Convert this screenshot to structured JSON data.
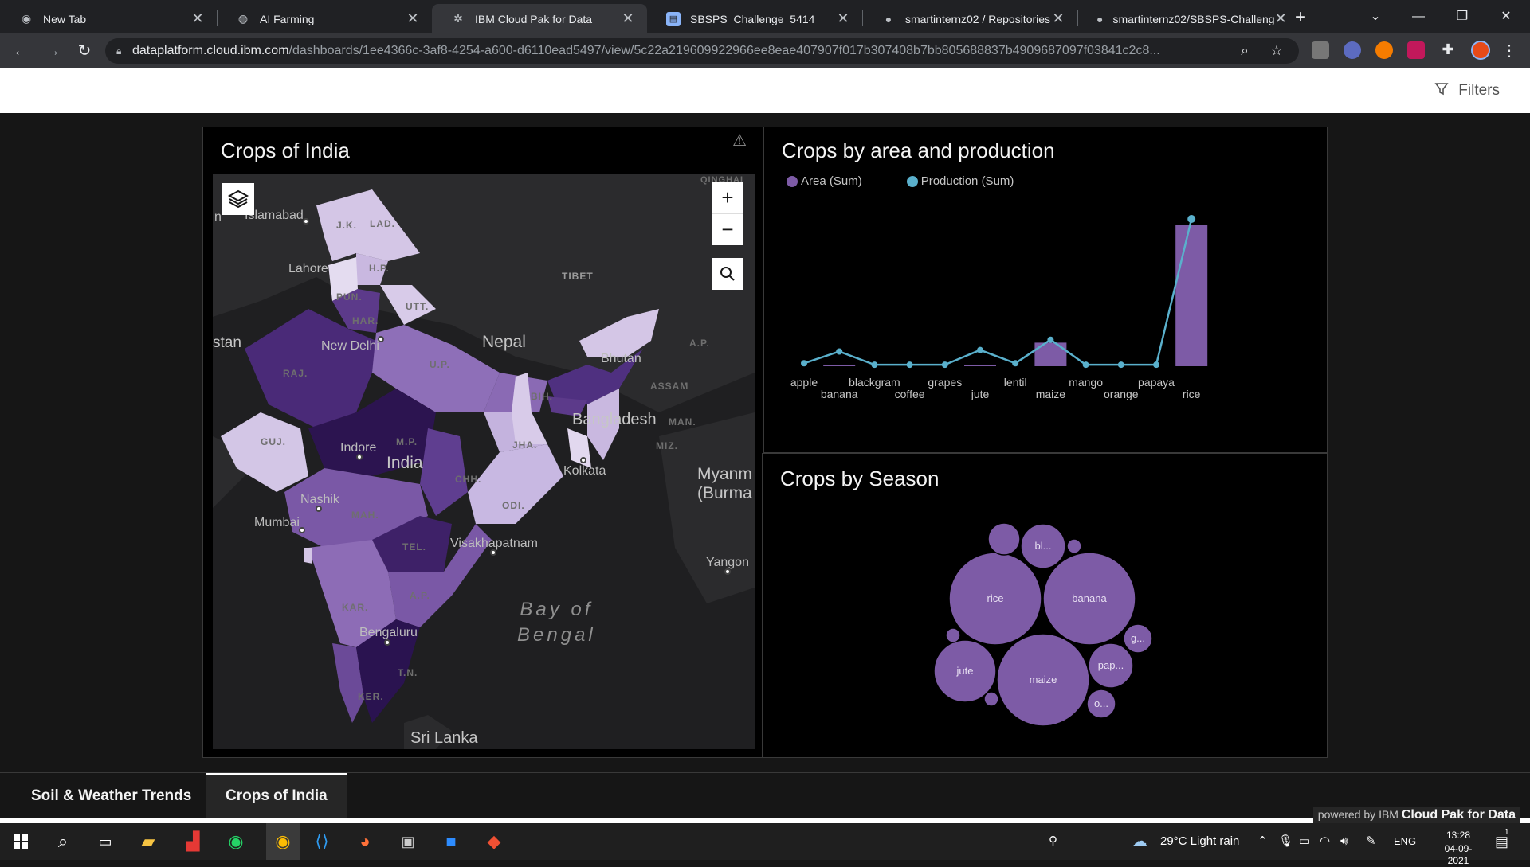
{
  "browser": {
    "tabs": [
      {
        "title": "New Tab",
        "icon": "chrome-icon"
      },
      {
        "title": "AI Farming",
        "icon": "globe-icon"
      },
      {
        "title": "IBM Cloud Pak for Data",
        "icon": "ibm-icon"
      },
      {
        "title": "SBSPS_Challenge_5414",
        "icon": "document-icon"
      },
      {
        "title": "smartinternz02 / Repositories",
        "icon": "github-icon"
      },
      {
        "title": "smartinternz02/SBSPS-Challeng",
        "icon": "github-icon"
      }
    ],
    "url_domain": "dataplatform.cloud.ibm.com",
    "url_path": "/dashboards/1ee4366c-3af8-4254-a600-d6110ead5497/view/5c22a219609922966ee8eae407907f017b307408b7bb805688837b4909687097f03841c2c8..."
  },
  "header": {
    "filters_label": "Filters"
  },
  "map_panel": {
    "title": "Crops of India",
    "labels": {
      "qinghai": "QINGHAI",
      "islamabad": "Islamabad",
      "jk": "J.K.",
      "lad": "LAD.",
      "hp": "H.P.",
      "lahore": "Lahore",
      "tibet": "TIBET",
      "pun": "PUN.",
      "utt": "UTT.",
      "har": "HAR.",
      "stan": "stan",
      "new_delhi": "New Delhi",
      "nepal": "Nepal",
      "raj": "RAJ.",
      "up": "U.P.",
      "bhutan": "Bhutan",
      "ap_ne": "A.P.",
      "assam": "ASSAM",
      "bih": "BIH.",
      "bangladesh": "Bangladesh",
      "man": "MAN.",
      "miz": "MIZ.",
      "guj": "GUJ.",
      "mp": "M.P.",
      "indore": "Indore",
      "india": "India",
      "jha": "JHA.",
      "kolkata": "Kolkata",
      "chh": "CHH.",
      "nashik": "Nashik",
      "myanmar": "Myanm\n(Burma",
      "mah": "MAH.",
      "mumbai": "Mumbai",
      "odi": "ODI.",
      "tel": "TEL.",
      "visakhapatnam": "Visakhapatnam",
      "yangon": "Yangon",
      "ap": "A.P.",
      "bay": "Bay of\nBengal",
      "kar": "KAR.",
      "bengaluru": "Bengaluru",
      "tn": "T.N.",
      "ker": "KER.",
      "srilanka": "Sri Lanka",
      "n": "n"
    }
  },
  "area_panel": {
    "title": "Crops by area and production",
    "legend": [
      {
        "name": "Area (Sum)",
        "color": "#7d5ba6"
      },
      {
        "name": "Production (Sum)",
        "color": "#5ab0cc"
      }
    ]
  },
  "season_panel": {
    "title": "Crops by Season",
    "bubbles": [
      {
        "label": "rice"
      },
      {
        "label": "banana"
      },
      {
        "label": "maize"
      },
      {
        "label": "jute"
      },
      {
        "label": "pap..."
      },
      {
        "label": "bl..."
      },
      {
        "label": "g..."
      },
      {
        "label": "o..."
      }
    ]
  },
  "chart_data": [
    {
      "type": "bar",
      "title": "Crops by area and production",
      "categories": [
        "apple",
        "banana",
        "blackgram",
        "coffee",
        "grapes",
        "jute",
        "lentil",
        "maize",
        "mango",
        "orange",
        "papaya",
        "rice"
      ],
      "series": [
        {
          "name": "Area (Sum)",
          "type": "bar",
          "values": [
            0,
            1,
            0,
            0,
            0,
            1,
            0,
            16,
            0,
            0,
            0,
            96
          ]
        },
        {
          "name": "Production (Sum)",
          "type": "line",
          "values": [
            2,
            10,
            1,
            1,
            1,
            11,
            2,
            18,
            1,
            1,
            1,
            100
          ]
        }
      ],
      "ylim": [
        0,
        100
      ]
    }
  ],
  "bottom_tabs": [
    {
      "label": "Soil & Weather Trends",
      "active": false
    },
    {
      "label": "Crops of India",
      "active": true
    }
  ],
  "powered_by": {
    "prefix": "powered by IBM",
    "product": "Cloud Pak for Data"
  },
  "taskbar": {
    "weather": "29°C  Light rain",
    "language": "ENG",
    "time": "13:28",
    "date": "04-09-2021",
    "notifications": "1"
  }
}
